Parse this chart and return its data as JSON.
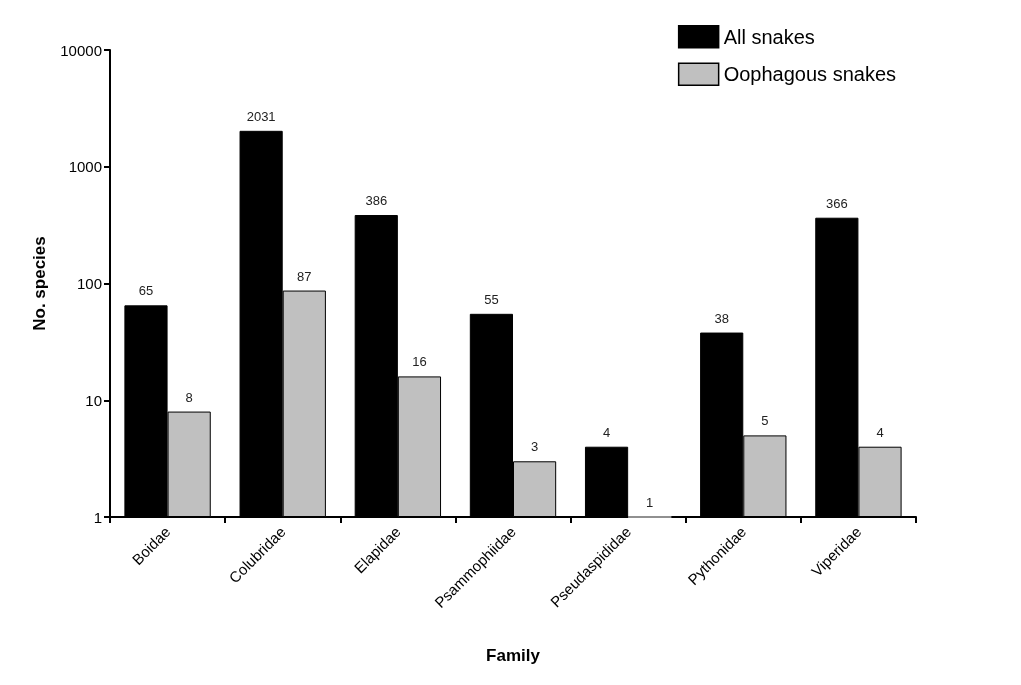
{
  "chart_data": {
    "type": "bar",
    "categories": [
      "Boidae",
      "Colubridae",
      "Elapidae",
      "Psammophiidae",
      "Pseudaspididae",
      "Pythonidae",
      "Viperidae"
    ],
    "series": [
      {
        "name": "All snakes",
        "color": "#000000",
        "values": [
          65,
          2031,
          386,
          55,
          4,
          38,
          366
        ]
      },
      {
        "name": "Oophagous snakes",
        "color": "#c0c0c0",
        "values": [
          8,
          87,
          16,
          3,
          1,
          5,
          4
        ]
      }
    ],
    "xlabel": "Family",
    "ylabel": "No. species",
    "log": true,
    "ylim": [
      1,
      10000
    ],
    "yticks": [
      1,
      10,
      100,
      1000,
      10000
    ],
    "grid": false,
    "legend": "top right",
    "data_labels": true
  }
}
